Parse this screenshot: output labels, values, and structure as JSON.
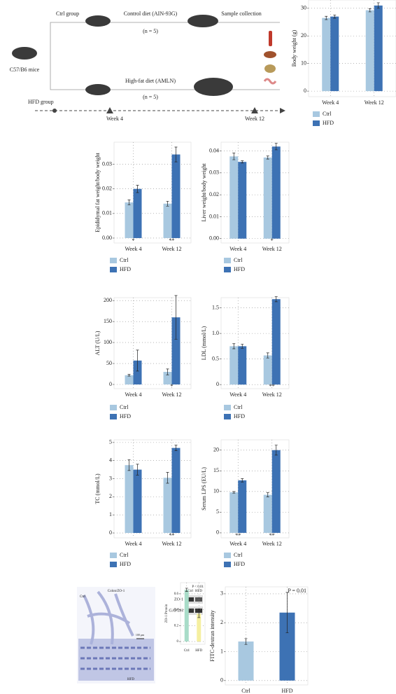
{
  "diagram": {
    "ctrl_group": "Ctrl group",
    "control_diet": "Control diet (AIN-93G)",
    "ctrl_n": "(n = 5)",
    "sample_collection": "Sample collection",
    "mice": "C57/B6 mice",
    "hfd_diet": "High-fat diet (AMLN)",
    "hfd_n": "(n = 5)",
    "hfd_group": "HFD group",
    "week4": "Week 4",
    "week12": "Week 12"
  },
  "histology": {
    "title": "Colon/ZO-1",
    "ctrl": "Ctrl",
    "hfd": "HFD",
    "scale": "100 μm"
  },
  "blot": {
    "columns": [
      "Ctrl",
      "HFD"
    ],
    "rows": [
      "ZO-1",
      "GAPDH"
    ]
  },
  "chart_data": [
    {
      "type": "bar",
      "y_label": "Body weight (g)",
      "categories": [
        "Week 4",
        "Week 12"
      ],
      "series": [
        {
          "name": "Ctrl",
          "color": "#a8c8e0",
          "values": [
            26.5,
            29.3
          ],
          "errors": [
            0.6,
            0.6
          ]
        },
        {
          "name": "HFD",
          "color": "#3d72b4",
          "values": [
            27,
            31
          ],
          "errors": [
            0.6,
            1
          ]
        }
      ],
      "ylim": [
        -2,
        33
      ],
      "yticks": [
        0,
        10,
        20,
        30
      ],
      "grid": true,
      "legend": "bottom-left"
    },
    {
      "type": "bar",
      "y_label": "Epididymal fat weight/body weight",
      "categories": [
        "Week 4",
        "Week 12"
      ],
      "series": [
        {
          "name": "Ctrl",
          "color": "#a8c8e0",
          "values": [
            0.0145,
            0.014
          ],
          "errors": [
            0.001,
            0.001
          ]
        },
        {
          "name": "HFD",
          "color": "#3d72b4",
          "values": [
            0.02,
            0.034
          ],
          "errors": [
            0.0015,
            0.003
          ]
        }
      ],
      "ylim": [
        -0.002,
        0.039
      ],
      "yticks": [
        {
          "value": 0,
          "label": "0.00"
        },
        {
          "value": 0.01,
          "label": "0.01"
        },
        {
          "value": 0.02,
          "label": "0.02"
        },
        {
          "value": 0.03,
          "label": "0.03"
        }
      ],
      "grid": true,
      "legend": "bottom-left",
      "significance": [
        "*",
        "**"
      ]
    },
    {
      "type": "bar",
      "y_label": "Liver weight/body weight",
      "categories": [
        "Week 4",
        "Week 12"
      ],
      "series": [
        {
          "name": "Ctrl",
          "color": "#a8c8e0",
          "values": [
            0.0375,
            0.037
          ],
          "errors": [
            0.0015,
            0.0007
          ]
        },
        {
          "name": "HFD",
          "color": "#3d72b4",
          "values": [
            0.035,
            0.042
          ],
          "errors": [
            0.0005,
            0.0015
          ]
        }
      ],
      "ylim": [
        -0.002,
        0.044
      ],
      "yticks": [
        {
          "value": 0,
          "label": "0.00"
        },
        {
          "value": 0.01,
          "label": "0.01"
        },
        {
          "value": 0.02,
          "label": "0.02"
        },
        {
          "value": 0.03,
          "label": "0.03"
        },
        {
          "value": 0.04,
          "label": "0.04"
        }
      ],
      "grid": true,
      "legend": "bottom-left",
      "significance": [
        null,
        "*"
      ]
    },
    {
      "type": "bar",
      "y_label": "ALT (U/L)",
      "categories": [
        "Week 4",
        "Week 12"
      ],
      "series": [
        {
          "name": "Ctrl",
          "color": "#a8c8e0",
          "values": [
            22,
            30
          ],
          "errors": [
            2,
            7
          ]
        },
        {
          "name": "HFD",
          "color": "#3d72b4",
          "values": [
            57,
            160
          ],
          "errors": [
            25,
            52
          ]
        }
      ],
      "ylim": [
        -10,
        207
      ],
      "yticks": [
        0,
        50,
        100,
        150,
        200
      ],
      "grid": true,
      "legend": "bottom-left",
      "significance": [
        null,
        "*"
      ]
    },
    {
      "type": "bar",
      "y_label": "LDL (mmol/L)",
      "categories": [
        "Week 4",
        "Week 12"
      ],
      "series": [
        {
          "name": "Ctrl",
          "color": "#a8c8e0",
          "values": [
            0.75,
            0.57
          ],
          "errors": [
            0.05,
            0.05
          ]
        },
        {
          "name": "HFD",
          "color": "#3d72b4",
          "values": [
            0.75,
            1.67
          ],
          "errors": [
            0.04,
            0.05
          ]
        }
      ],
      "ylim": [
        -0.08,
        1.7
      ],
      "yticks": [
        0,
        0.5,
        {
          "value": 1,
          "label": "1.0"
        },
        1.5
      ],
      "grid": true,
      "legend": "bottom-left",
      "significance": [
        null,
        "**"
      ]
    },
    {
      "type": "bar",
      "y_label": "TC (mmol/L)",
      "categories": [
        "Week 4",
        "Week 12"
      ],
      "series": [
        {
          "name": "Ctrl",
          "color": "#a8c8e0",
          "values": [
            3.75,
            3.05
          ],
          "errors": [
            0.3,
            0.3
          ]
        },
        {
          "name": "HFD",
          "color": "#3d72b4",
          "values": [
            3.5,
            4.7
          ],
          "errors": [
            0.3,
            0.15
          ]
        }
      ],
      "ylim": [
        -0.27,
        5.15
      ],
      "yticks": [
        0,
        1,
        2,
        3,
        4,
        5
      ],
      "grid": true,
      "legend": "bottom-left",
      "significance": [
        null,
        "**"
      ]
    },
    {
      "type": "bar",
      "y_label": "Serum LPS (EU/L)",
      "categories": [
        "Week 4",
        "Week 12"
      ],
      "series": [
        {
          "name": "Ctrl",
          "color": "#a8c8e0",
          "values": [
            9.8,
            9.2
          ],
          "errors": [
            0.2,
            0.5
          ]
        },
        {
          "name": "HFD",
          "color": "#3d72b4",
          "values": [
            12.7,
            20
          ],
          "errors": [
            0.4,
            1.2
          ]
        }
      ],
      "ylim": [
        -1.2,
        22.5
      ],
      "yticks": [
        0,
        5,
        10,
        15,
        20
      ],
      "grid": true,
      "legend": "bottom-left",
      "significance": [
        "**",
        "**"
      ]
    },
    {
      "type": "bar",
      "y_label": "ZO-1 Protein",
      "categories": [
        "Ctrl",
        "HFD"
      ],
      "values": [
        0.65,
        0.35
      ],
      "errors": [
        0.02,
        0.05
      ],
      "colors": [
        "#a8dcc8",
        "#f5efa0"
      ],
      "ylim": [
        -0.035,
        0.74
      ],
      "yticks": [
        0,
        0.2,
        0.4,
        0.6
      ],
      "grid": true,
      "annotation": "P < 0.01"
    },
    {
      "type": "bar",
      "y_label": "FITC-dextran intensity",
      "categories": [
        "Ctrl",
        "HFD"
      ],
      "values": [
        1.35,
        2.35
      ],
      "errors": [
        0.1,
        0.7
      ],
      "colors": [
        "#a8c8e0",
        "#3d72b4"
      ],
      "ylim": [
        -0.15,
        3.24
      ],
      "yticks": [
        0,
        1,
        2,
        3
      ],
      "grid": true,
      "annotation": "P = 0.01"
    }
  ]
}
